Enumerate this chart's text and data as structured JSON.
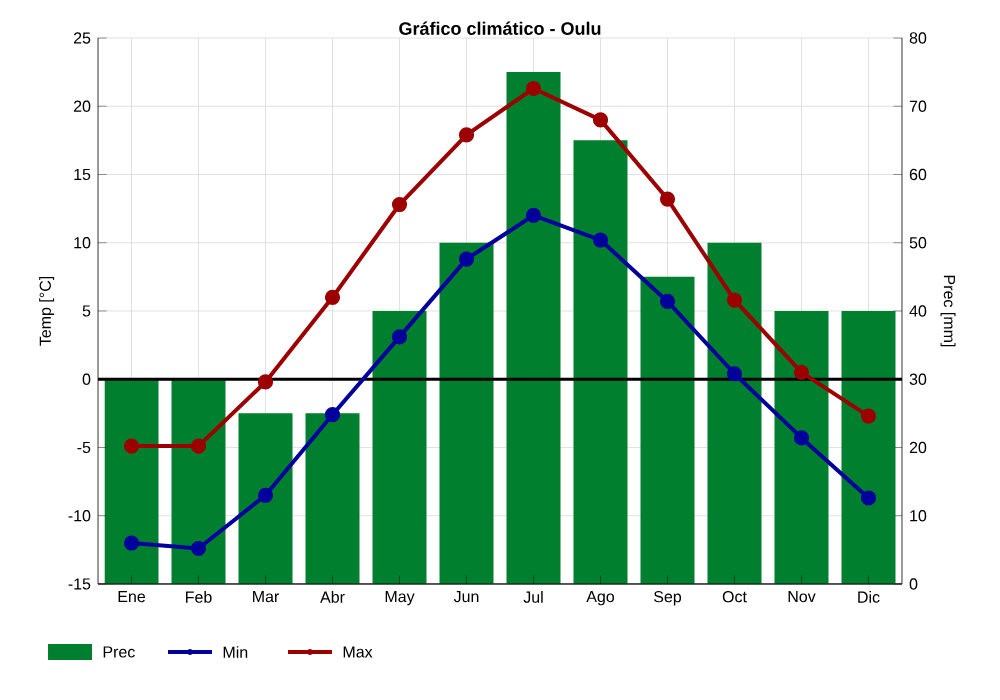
{
  "chart_data": {
    "type": "bar",
    "title": "Gráfico climático - Oulu",
    "categories": [
      "Ene",
      "Feb",
      "Mar",
      "Abr",
      "May",
      "Jun",
      "Jul",
      "Ago",
      "Sep",
      "Oct",
      "Nov",
      "Dic"
    ],
    "series": [
      {
        "name": "Prec",
        "axis": "y2",
        "color": "#007f2f",
        "values": [
          30,
          30,
          25,
          25,
          40,
          50,
          75,
          65,
          45,
          50,
          40,
          40
        ]
      },
      {
        "name": "Min",
        "type": "line",
        "color": "#00009c",
        "values": [
          -12,
          -12.4,
          -8.5,
          -2.6,
          3.1,
          8.8,
          12,
          10.2,
          5.7,
          0.4,
          -4.3,
          -8.7
        ]
      },
      {
        "name": "Max",
        "type": "line",
        "color": "#9c0000",
        "values": [
          -4.9,
          -4.9,
          -0.2,
          6,
          12.8,
          17.9,
          21.3,
          19,
          13.2,
          5.8,
          0.5,
          -2.7
        ]
      }
    ],
    "ylabel": "Temp [°C]",
    "y2label": "Prec [mm]",
    "ylim": [
      -15,
      25
    ],
    "yticks": [
      -15,
      -10,
      -5,
      0,
      5,
      10,
      15,
      20,
      25
    ],
    "y2lim": [
      0,
      80
    ],
    "y2ticks": [
      0,
      10,
      20,
      30,
      40,
      50,
      60,
      70,
      80
    ],
    "ref_lines": [
      {
        "axis": "y",
        "value": 0,
        "color": "#000000"
      }
    ],
    "grid": true,
    "legend": "bottom",
    "marker": "circle",
    "line_style": "solid"
  }
}
